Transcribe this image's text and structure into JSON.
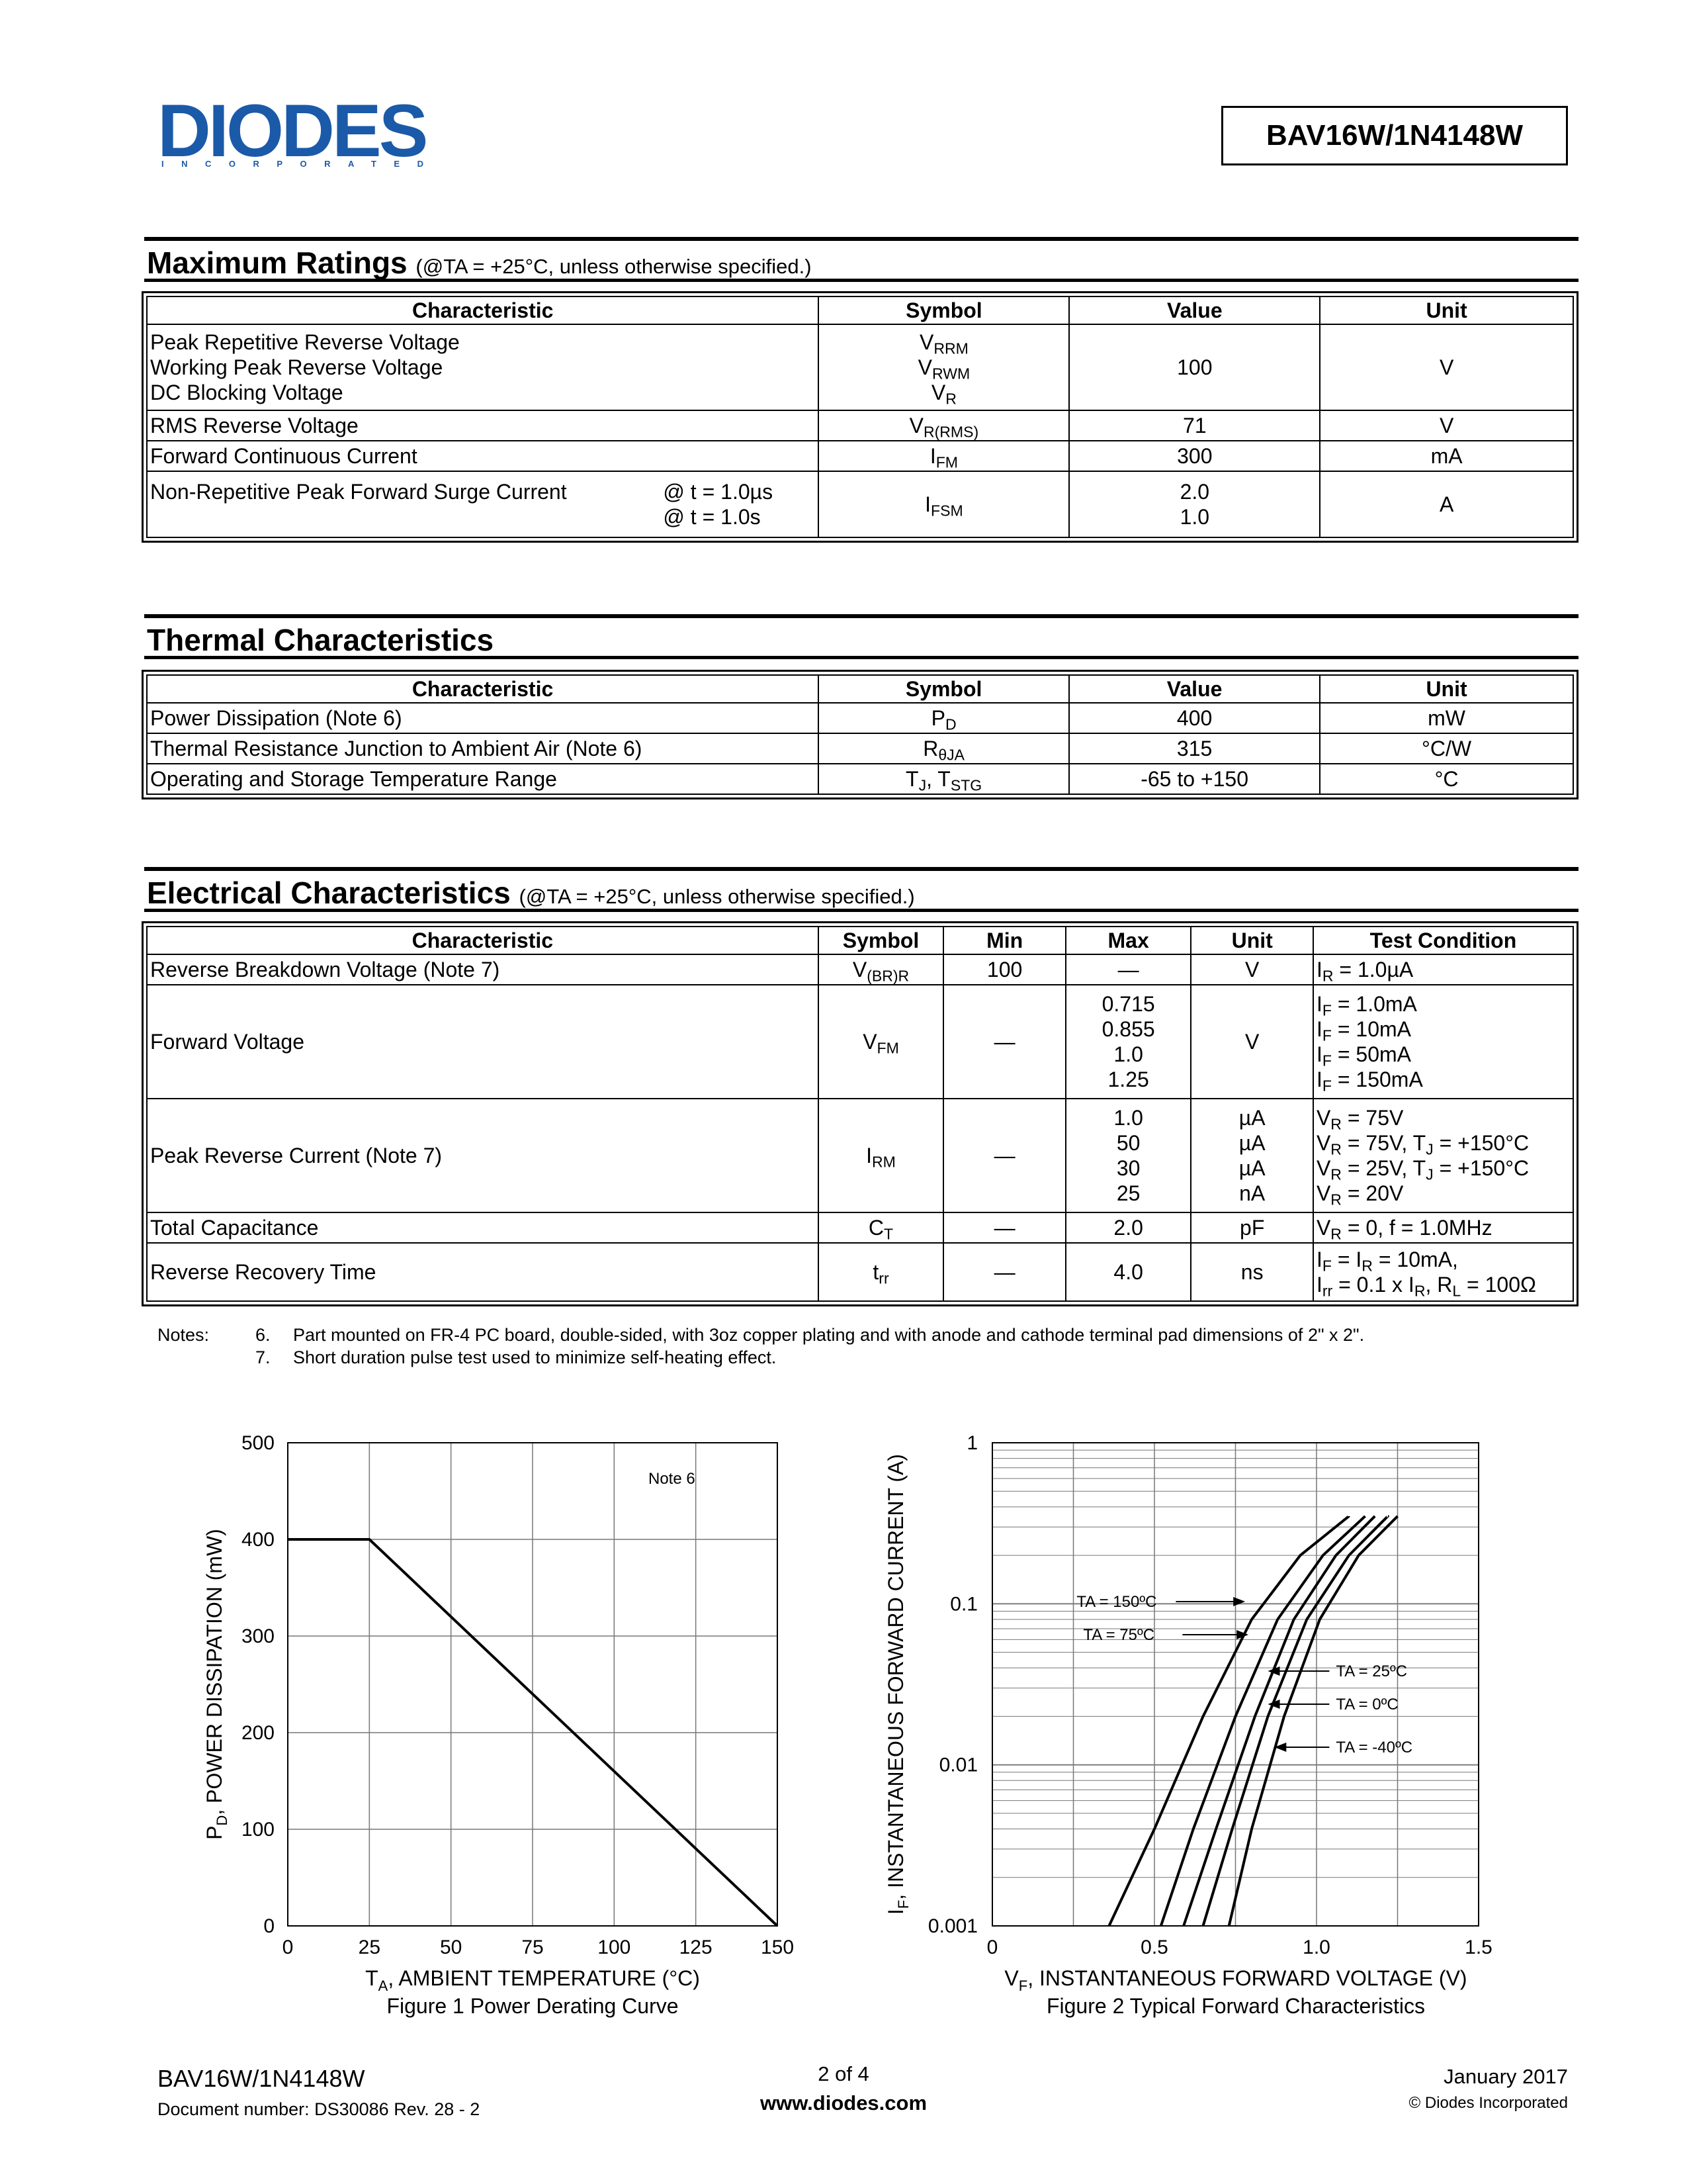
{
  "header": {
    "logo_text": "DIODES",
    "logo_sub": "INCORPORATED",
    "part_number": "BAV16W/1N4148W"
  },
  "max_ratings": {
    "title": "Maximum Ratings",
    "condition": "(@TA = +25°C, unless otherwise specified.)",
    "headers": [
      "Characteristic",
      "Symbol",
      "Value",
      "Unit"
    ],
    "rows": [
      {
        "chars": [
          "Peak Repetitive Reverse Voltage",
          "Working Peak Reverse Voltage",
          "DC Blocking Voltage"
        ],
        "symbols": [
          "VRRM",
          "VRWM",
          "VR"
        ],
        "value": "100",
        "unit": "V"
      },
      {
        "chars": [
          "RMS Reverse Voltage"
        ],
        "symbols": [
          "VR(RMS)"
        ],
        "value": "71",
        "unit": "V"
      },
      {
        "chars": [
          "Forward Continuous Current"
        ],
        "symbols": [
          "IFM"
        ],
        "value": "300",
        "unit": "mA"
      },
      {
        "chars": [
          "Non-Repetitive Peak Forward Surge Current"
        ],
        "conds": [
          "@ t = 1.0µs",
          "@ t = 1.0s"
        ],
        "symbols": [
          "IFSM"
        ],
        "values": [
          "2.0",
          "1.0"
        ],
        "unit": "A"
      }
    ]
  },
  "thermal": {
    "title": "Thermal Characteristics",
    "headers": [
      "Characteristic",
      "Symbol",
      "Value",
      "Unit"
    ],
    "rows": [
      {
        "char": "Power Dissipation (Note 6)",
        "symbol": "PD",
        "value": "400",
        "unit": "mW"
      },
      {
        "char": "Thermal Resistance Junction to Ambient Air (Note 6)",
        "symbol": "RθJA",
        "value": "315",
        "unit": "°C/W"
      },
      {
        "char": "Operating and Storage Temperature Range",
        "symbol": "TJ, TSTG",
        "value": "-65 to +150",
        "unit": "°C"
      }
    ]
  },
  "electrical": {
    "title": "Electrical Characteristics",
    "condition": "(@TA = +25°C, unless otherwise specified.)",
    "headers": [
      "Characteristic",
      "Symbol",
      "Min",
      "Max",
      "Unit",
      "Test Condition"
    ],
    "rows": [
      {
        "char": "Reverse Breakdown Voltage (Note 7)",
        "symbol": "V(BR)R",
        "min": "100",
        "max": [
          "—"
        ],
        "unit": [
          "V"
        ],
        "cond": [
          "IR = 1.0µA"
        ]
      },
      {
        "char": "Forward Voltage",
        "symbol": "VFM",
        "min": "—",
        "max": [
          "0.715",
          "0.855",
          "1.0",
          "1.25"
        ],
        "unit": [
          "V"
        ],
        "cond": [
          "IF = 1.0mA",
          "IF = 10mA",
          "IF = 50mA",
          "IF = 150mA"
        ]
      },
      {
        "char": "Peak Reverse Current (Note 7)",
        "symbol": "IRM",
        "min": "—",
        "max": [
          "1.0",
          "50",
          "30",
          "25"
        ],
        "unit": [
          "µA",
          "µA",
          "µA",
          "nA"
        ],
        "cond": [
          "VR = 75V",
          "VR = 75V, TJ = +150°C",
          "VR = 25V, TJ = +150°C",
          "VR = 20V"
        ]
      },
      {
        "char": "Total Capacitance",
        "symbol": "CT",
        "min": "—",
        "max": [
          "2.0"
        ],
        "unit": [
          "pF"
        ],
        "cond": [
          "VR = 0, f = 1.0MHz"
        ]
      },
      {
        "char": "Reverse Recovery Time",
        "symbol": "trr",
        "min": "—",
        "max": [
          "4.0"
        ],
        "unit": [
          "ns"
        ],
        "cond": [
          "IF = IR = 10mA,",
          "Irr = 0.1 x IR, RL = 100Ω"
        ]
      }
    ]
  },
  "notes": {
    "label": "Notes:",
    "items": [
      {
        "num": "6.",
        "text": "Part mounted on FR-4 PC board, double-sided, with 3oz copper plating and with anode and cathode terminal pad dimensions of 2\" x 2\"."
      },
      {
        "num": "7.",
        "text": "Short duration pulse test used to minimize self-heating effect."
      }
    ]
  },
  "chart_data": [
    {
      "type": "line",
      "caption": "Figure 1  Power Derating Curve",
      "xlabel": "TA, AMBIENT TEMPERATURE (°C)",
      "ylabel": "PD, POWER DISSIPATION (mW)",
      "xlim": [
        0,
        150
      ],
      "ylim": [
        0,
        500
      ],
      "xticks": [
        0,
        25,
        50,
        75,
        100,
        125,
        150
      ],
      "yticks": [
        0,
        100,
        200,
        300,
        400,
        500
      ],
      "annotation": "Note 6",
      "grid": true,
      "series": [
        {
          "x": [
            0,
            25,
            150
          ],
          "y": [
            400,
            400,
            0
          ]
        }
      ]
    },
    {
      "type": "line",
      "caption": "Figure 2  Typical Forward Characteristics",
      "xlabel": "VF, INSTANTANEOUS FORWARD VOLTAGE (V)",
      "ylabel": "IF, INSTANTANEOUS FORWARD CURRENT (A)",
      "xlim": [
        0,
        1.5
      ],
      "ylim": [
        0.001,
        1
      ],
      "yscale": "log",
      "xticks": [
        "0",
        "0.5",
        "1.0",
        "1.5"
      ],
      "yticks": [
        "0.001",
        "0.01",
        "0.1",
        "1"
      ],
      "grid": true,
      "series": [
        {
          "name": "TA = 150ºC",
          "x": [
            0.36,
            0.5,
            0.65,
            0.8,
            0.95,
            1.1
          ],
          "y": [
            0.001,
            0.004,
            0.02,
            0.08,
            0.2,
            0.35
          ]
        },
        {
          "name": "TA = 75ºC",
          "x": [
            0.52,
            0.62,
            0.75,
            0.88,
            1.02,
            1.15
          ],
          "y": [
            0.001,
            0.004,
            0.02,
            0.08,
            0.2,
            0.35
          ]
        },
        {
          "name": "TA = 25ºC",
          "x": [
            0.59,
            0.69,
            0.81,
            0.93,
            1.06,
            1.18
          ],
          "y": [
            0.001,
            0.004,
            0.02,
            0.08,
            0.2,
            0.35
          ]
        },
        {
          "name": "TA = 0ºC",
          "x": [
            0.65,
            0.74,
            0.85,
            0.97,
            1.1,
            1.22
          ],
          "y": [
            0.001,
            0.004,
            0.02,
            0.08,
            0.2,
            0.35
          ]
        },
        {
          "name": "TA = -40ºC",
          "x": [
            0.73,
            0.8,
            0.9,
            1.01,
            1.13,
            1.25
          ],
          "y": [
            0.001,
            0.004,
            0.02,
            0.08,
            0.2,
            0.35
          ]
        }
      ]
    }
  ],
  "footer": {
    "part": "BAV16W/1N4148W",
    "docnum": "Document number: DS30086 Rev. 28 - 2",
    "page": "2 of 4",
    "url": "www.diodes.com",
    "date": "January 2017",
    "copyright": "© Diodes Incorporated"
  }
}
